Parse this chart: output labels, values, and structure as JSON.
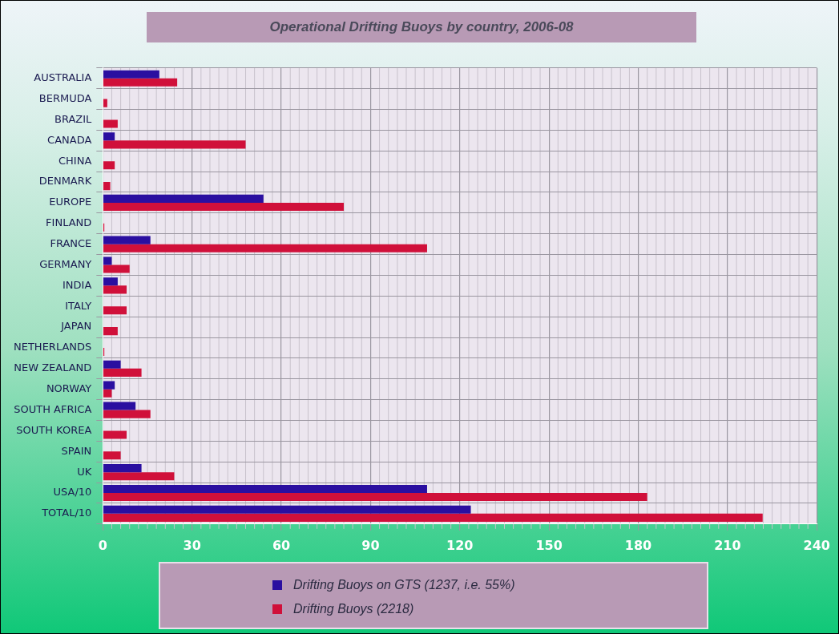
{
  "chart_data": {
    "type": "bar",
    "orientation": "horizontal",
    "title": "Operational Drifting Buoys by country, 2006-08",
    "categories": [
      "AUSTRALIA",
      "BERMUDA",
      "BRAZIL",
      "CANADA",
      "CHINA",
      "DENMARK",
      "EUROPE",
      "FINLAND",
      "FRANCE",
      "GERMANY",
      "INDIA",
      "ITALY",
      "JAPAN",
      "NETHERLANDS",
      "NEW ZEALAND",
      "NORWAY",
      "SOUTH AFRICA",
      "SOUTH KOREA",
      "SPAIN",
      "UK",
      "USA/10",
      "TOTAL/10"
    ],
    "series": [
      {
        "name": "Drifting Buoys on GTS (1237, i.e. 55%)",
        "color": "#2a0fa0",
        "values": [
          19,
          null,
          null,
          4,
          null,
          null,
          54,
          null,
          16,
          3,
          5,
          null,
          null,
          null,
          6,
          4,
          11,
          null,
          null,
          13,
          109,
          123.7
        ]
      },
      {
        "name": "Drifting Buoys (2218)",
        "color": "#d0103a",
        "values": [
          25,
          1.5,
          5,
          48,
          4,
          2.5,
          81,
          0.5,
          109,
          9,
          8,
          8,
          5,
          0.5,
          13,
          3,
          16,
          8,
          6,
          24,
          183,
          221.8
        ]
      }
    ],
    "xlim": [
      0,
      240
    ],
    "xticks": [
      0,
      30,
      60,
      90,
      120,
      150,
      180,
      210,
      240
    ],
    "grid": true,
    "legend": "bottom"
  }
}
